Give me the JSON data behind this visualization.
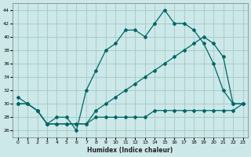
{
  "xlabel": "Humidex (Indice chaleur)",
  "bg_color": "#cce8e8",
  "line_color": "#006666",
  "grid_color": "#aacccc",
  "xlim": [
    -0.5,
    23.5
  ],
  "ylim": [
    25,
    45
  ],
  "xticks": [
    0,
    1,
    2,
    3,
    4,
    5,
    6,
    7,
    8,
    9,
    10,
    11,
    12,
    13,
    14,
    15,
    16,
    17,
    18,
    19,
    20,
    21,
    22,
    23
  ],
  "yticks": [
    26,
    28,
    30,
    32,
    34,
    36,
    38,
    40,
    42,
    44
  ],
  "x": [
    0,
    1,
    2,
    3,
    4,
    5,
    6,
    7,
    8,
    9,
    10,
    11,
    12,
    13,
    14,
    15,
    16,
    17,
    18,
    19,
    20,
    21,
    22,
    23
  ],
  "line1": [
    31,
    30,
    29,
    27,
    28,
    28,
    26,
    32,
    35,
    38,
    39,
    41,
    41,
    40,
    42,
    44,
    42,
    42,
    41,
    39,
    36,
    32,
    30,
    30
  ],
  "line2": [
    30,
    30,
    29,
    27,
    27,
    27,
    27,
    27,
    28,
    28,
    28,
    28,
    28,
    28,
    29,
    29,
    29,
    29,
    29,
    29,
    29,
    29,
    29,
    30
  ],
  "line3": [
    30,
    30,
    29,
    27,
    27,
    27,
    27,
    27,
    29,
    30,
    31,
    32,
    33,
    34,
    35,
    36,
    37,
    38,
    39,
    40,
    39,
    37,
    30,
    30
  ]
}
